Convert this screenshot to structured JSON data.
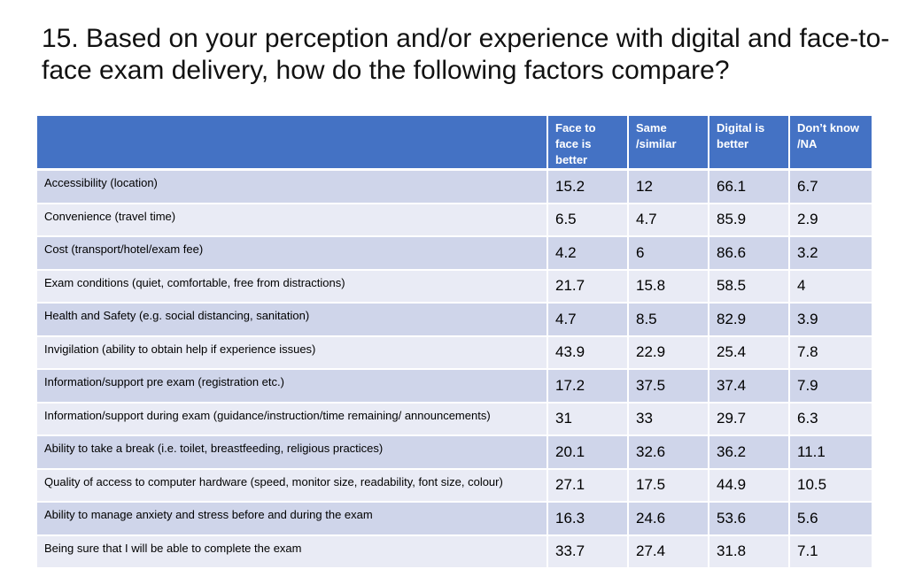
{
  "title": "15. Based on your perception and/or experience with digital and face-to-face exam delivery, how do the following factors compare?",
  "table": {
    "headers": [
      "",
      "Face to face is better",
      "Same /similar",
      "Digital is better",
      "Don’t know /NA"
    ],
    "rows": [
      {
        "factor": "Accessibility (location)",
        "values": [
          "15.2",
          "12",
          "66.1",
          "6.7"
        ]
      },
      {
        "factor": "Convenience (travel time)",
        "values": [
          "6.5",
          "4.7",
          "85.9",
          "2.9"
        ]
      },
      {
        "factor": "Cost (transport/hotel/exam fee)",
        "values": [
          "4.2",
          "6",
          "86.6",
          "3.2"
        ]
      },
      {
        "factor": "Exam conditions (quiet, comfortable, free from distractions)",
        "values": [
          "21.7",
          "15.8",
          "58.5",
          "4"
        ]
      },
      {
        "factor": "Health and Safety (e.g. social distancing, sanitation)",
        "values": [
          "4.7",
          "8.5",
          "82.9",
          "3.9"
        ]
      },
      {
        "factor": "Invigilation (ability to obtain help if experience issues)",
        "values": [
          "43.9",
          "22.9",
          "25.4",
          "7.8"
        ]
      },
      {
        "factor": "Information/support pre exam (registration etc.)",
        "values": [
          "17.2",
          "37.5",
          "37.4",
          "7.9"
        ]
      },
      {
        "factor": "Information/support during exam (guidance/instruction/time remaining/ announcements)",
        "values": [
          "31",
          "33",
          "29.7",
          "6.3"
        ]
      },
      {
        "factor": "Ability to take a break (i.e. toilet, breastfeeding, religious practices)",
        "values": [
          "20.1",
          "32.6",
          "36.2",
          "11.1"
        ]
      },
      {
        "factor": "Quality of access to computer hardware (speed, monitor size, readability, font size, colour)",
        "values": [
          "27.1",
          "17.5",
          "44.9",
          "10.5"
        ]
      },
      {
        "factor": "Ability to manage anxiety and stress before and during the exam",
        "values": [
          "16.3",
          "24.6",
          "53.6",
          "5.6"
        ]
      },
      {
        "factor": "Being sure that I will be able to complete the exam",
        "values": [
          "33.7",
          "27.4",
          "31.8",
          "7.1"
        ]
      }
    ]
  },
  "colors": {
    "header": "#4472c4",
    "row_odd": "#cfd5ea",
    "row_even": "#e9ebf5"
  }
}
